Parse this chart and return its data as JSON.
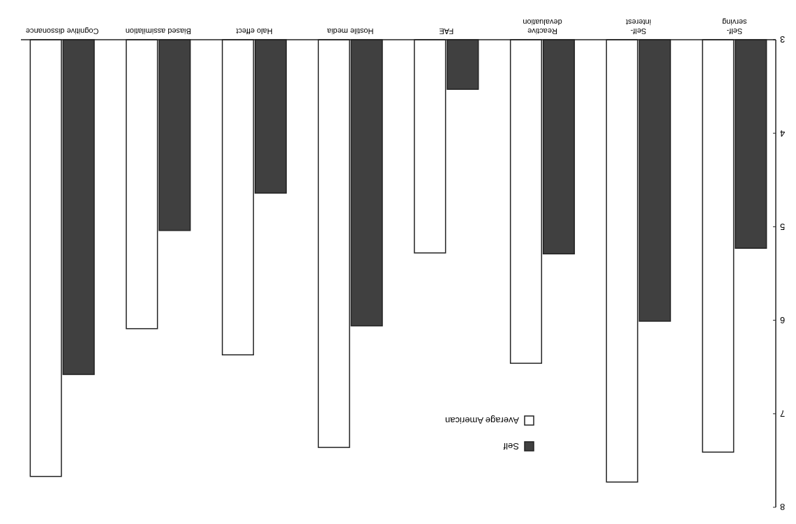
{
  "chart_data": {
    "type": "bar",
    "categories": [
      "Cognitive dissonance",
      "Biased assimilation",
      "Halo effect",
      "Hostile media",
      "FAE",
      "Reactive\ndevaluation",
      "Self-\ninterest",
      "Self-\nserving"
    ],
    "series": [
      {
        "name": "Average American",
        "color": "#ffffff",
        "values": [
          7.67,
          6.09,
          6.37,
          7.36,
          5.28,
          6.46,
          7.73,
          7.41
        ]
      },
      {
        "name": "Self",
        "color": "#404040",
        "values": [
          6.58,
          5.04,
          4.64,
          6.06,
          3.53,
          5.29,
          6.01,
          5.23
        ]
      }
    ],
    "ylim": [
      8,
      3
    ],
    "yticks": [
      3,
      4,
      5,
      6,
      7,
      8
    ],
    "grid": false,
    "legend": "bottom right"
  }
}
